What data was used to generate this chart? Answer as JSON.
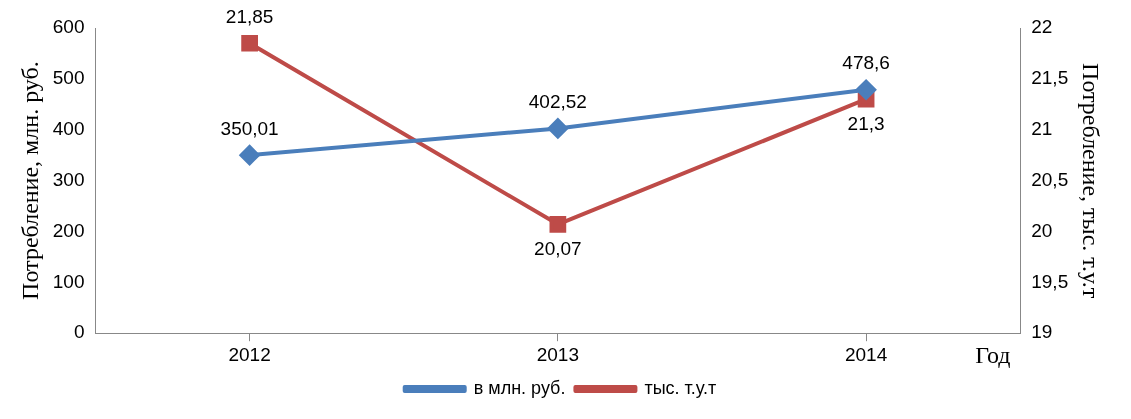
{
  "chart_data": {
    "type": "line",
    "categories": [
      "2012",
      "2013",
      "2014"
    ],
    "xlabel": "Год",
    "ylabel": "Потребление, млн. руб.",
    "y2label": "Потребление, тыс. т.у.т",
    "series": [
      {
        "name": "в млн. руб.",
        "color": "#4a7ebb",
        "values": [
          350.01,
          402.52,
          478.6
        ],
        "value_labels": [
          "350,01",
          "402,52",
          "478,6"
        ],
        "marker": "diamond"
      },
      {
        "name": "тыс. т.у.т",
        "color": "#be4b48",
        "values": [
          21.85,
          20.07,
          21.3
        ],
        "value_labels": [
          "21,85",
          "20,07",
          "21,3"
        ],
        "marker": "square",
        "axis": "y2"
      }
    ],
    "ylim": [
      0,
      600
    ],
    "yticks": [
      0,
      100,
      200,
      300,
      400,
      500,
      600
    ],
    "y2lim": [
      19,
      22
    ],
    "y2ticks": [
      19,
      {
        "value": 19.5,
        "label": "19,5"
      },
      20,
      {
        "value": 20.5,
        "label": "20,5"
      },
      21,
      {
        "value": 21.5,
        "label": "21,5"
      },
      22
    ],
    "grid": false,
    "legend": "bottom",
    "line_style": "solid"
  }
}
